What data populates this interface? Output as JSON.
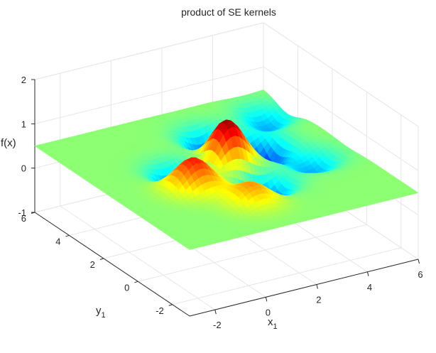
{
  "chart_data": {
    "type": "surface",
    "title": "product of SE kernels",
    "xlabel": "x",
    "xlabel_sub": "1",
    "ylabel": "y",
    "ylabel_sub": "1",
    "zlabel": "f(x)",
    "xlim": [
      -3,
      6
    ],
    "ylim": [
      -3,
      6
    ],
    "zlim": [
      -1,
      2
    ],
    "x_ticks": [
      "-2",
      "0",
      "2",
      "4",
      "6"
    ],
    "y_ticks": [
      "-2",
      "0",
      "2",
      "4",
      "6"
    ],
    "z_ticks": [
      "-1",
      "0",
      "1",
      "2"
    ],
    "grid": true,
    "colormap": "jet",
    "surface_baseline": 0.5,
    "bumps": [
      {
        "x": 1.8,
        "y": 1.9,
        "amplitude": 1.0
      },
      {
        "x": 3.7,
        "y": 2.9,
        "amplitude": -1.05
      },
      {
        "x": 0.2,
        "y": 2.2,
        "amplitude": -0.8
      },
      {
        "x": 2.6,
        "y": 4.0,
        "amplitude": -0.75
      },
      {
        "x": -0.3,
        "y": 0.8,
        "amplitude": 0.75
      },
      {
        "x": 2.2,
        "y": 0.3,
        "amplitude": -0.7
      },
      {
        "x": 0.8,
        "y": -1.0,
        "amplitude": 0.45
      },
      {
        "x": 4.6,
        "y": 1.1,
        "amplitude": -0.45
      },
      {
        "x": 5.2,
        "y": 4.6,
        "amplitude": -0.45
      }
    ]
  }
}
